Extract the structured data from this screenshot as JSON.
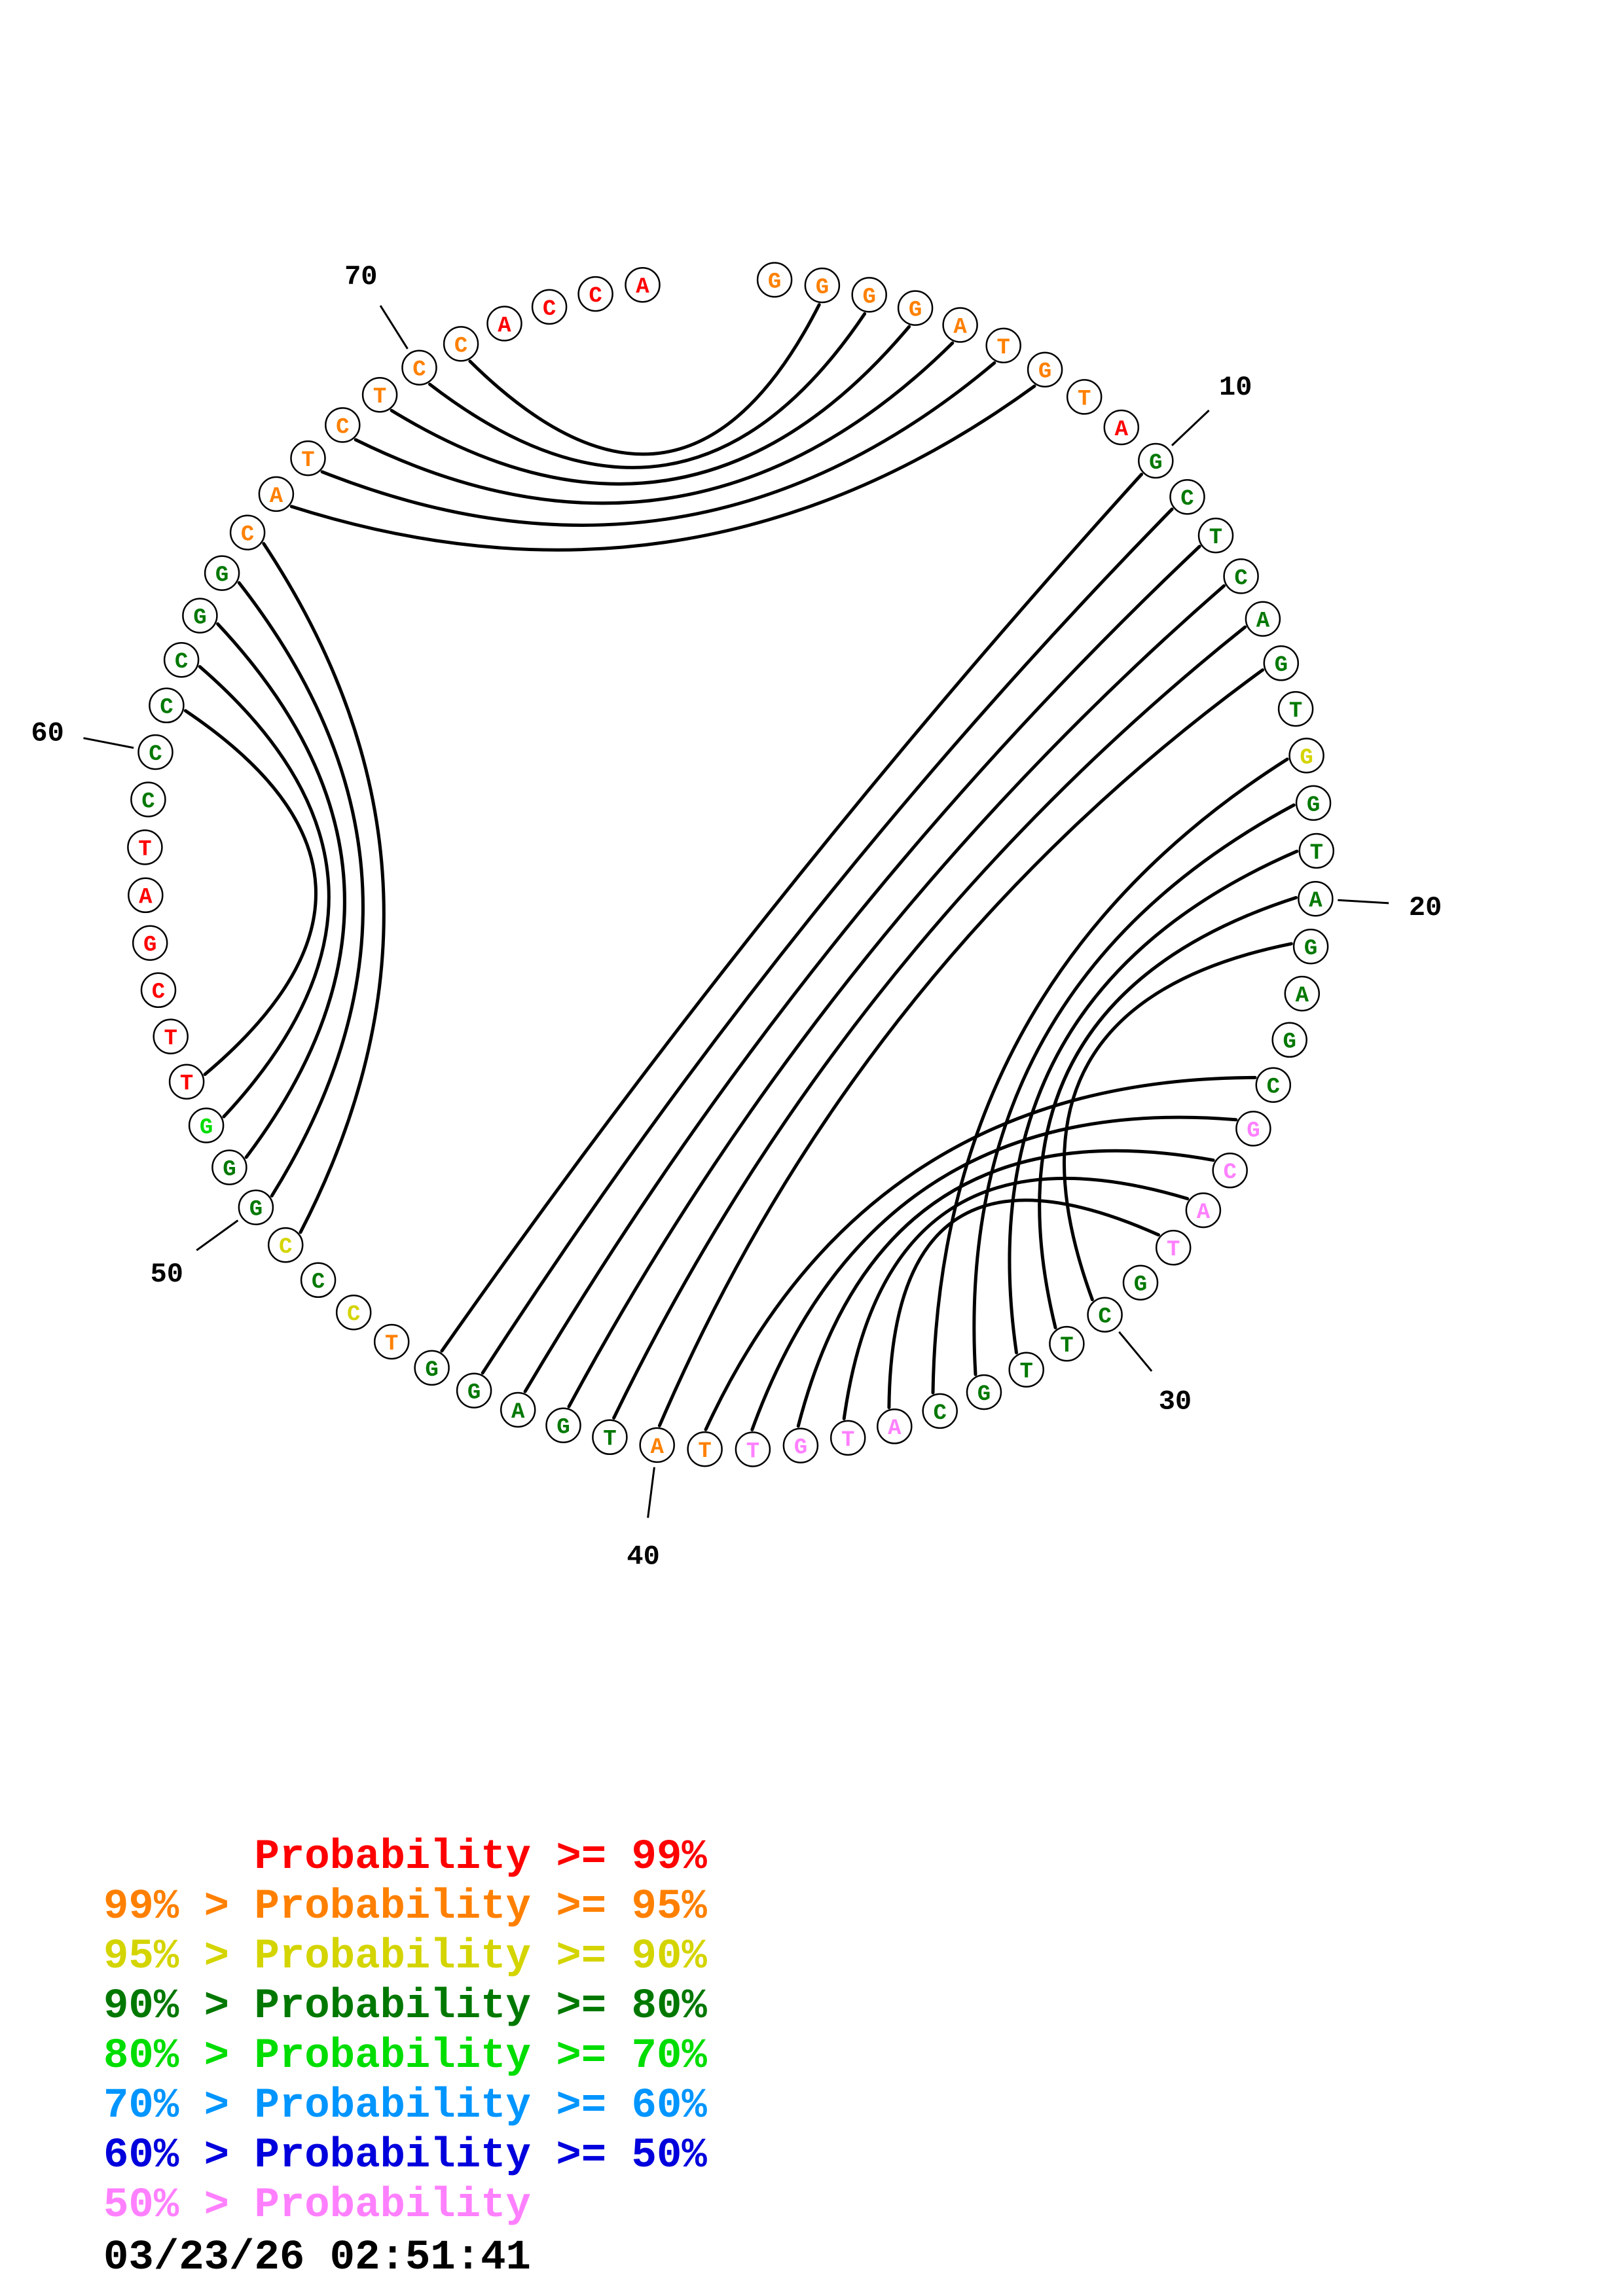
{
  "plot": {
    "description": "Circular nucleic-acid base-pair probability plot",
    "start_angle_deg": 4.3,
    "step_deg": 4.69,
    "decade_labels": [
      10,
      20,
      30,
      40,
      50,
      60,
      70
    ],
    "sequence": [
      {
        "b": "G",
        "c": "orange"
      },
      {
        "b": "G",
        "c": "orange"
      },
      {
        "b": "G",
        "c": "orange"
      },
      {
        "b": "G",
        "c": "orange"
      },
      {
        "b": "A",
        "c": "orange"
      },
      {
        "b": "T",
        "c": "orange"
      },
      {
        "b": "G",
        "c": "orange"
      },
      {
        "b": "T",
        "c": "orange"
      },
      {
        "b": "A",
        "c": "red"
      },
      {
        "b": "G",
        "c": "green"
      },
      {
        "b": "C",
        "c": "green"
      },
      {
        "b": "T",
        "c": "green"
      },
      {
        "b": "C",
        "c": "green"
      },
      {
        "b": "A",
        "c": "green"
      },
      {
        "b": "G",
        "c": "green"
      },
      {
        "b": "T",
        "c": "green"
      },
      {
        "b": "G",
        "c": "yellow"
      },
      {
        "b": "G",
        "c": "green"
      },
      {
        "b": "T",
        "c": "green"
      },
      {
        "b": "A",
        "c": "green"
      },
      {
        "b": "G",
        "c": "green"
      },
      {
        "b": "A",
        "c": "green"
      },
      {
        "b": "G",
        "c": "green"
      },
      {
        "b": "C",
        "c": "green"
      },
      {
        "b": "G",
        "c": "pink"
      },
      {
        "b": "C",
        "c": "pink"
      },
      {
        "b": "A",
        "c": "pink"
      },
      {
        "b": "T",
        "c": "pink"
      },
      {
        "b": "G",
        "c": "green"
      },
      {
        "b": "C",
        "c": "green"
      },
      {
        "b": "T",
        "c": "green"
      },
      {
        "b": "T",
        "c": "green"
      },
      {
        "b": "G",
        "c": "green"
      },
      {
        "b": "C",
        "c": "green"
      },
      {
        "b": "A",
        "c": "pink"
      },
      {
        "b": "T",
        "c": "pink"
      },
      {
        "b": "G",
        "c": "pink"
      },
      {
        "b": "T",
        "c": "pink"
      },
      {
        "b": "T",
        "c": "orange"
      },
      {
        "b": "A",
        "c": "orange"
      },
      {
        "b": "T",
        "c": "green"
      },
      {
        "b": "G",
        "c": "green"
      },
      {
        "b": "A",
        "c": "green"
      },
      {
        "b": "G",
        "c": "green"
      },
      {
        "b": "G",
        "c": "green"
      },
      {
        "b": "T",
        "c": "orange"
      },
      {
        "b": "C",
        "c": "yellow"
      },
      {
        "b": "C",
        "c": "green"
      },
      {
        "b": "C",
        "c": "yellow"
      },
      {
        "b": "G",
        "c": "green"
      },
      {
        "b": "G",
        "c": "green"
      },
      {
        "b": "G",
        "c": "brightgreen"
      },
      {
        "b": "T",
        "c": "red"
      },
      {
        "b": "T",
        "c": "red"
      },
      {
        "b": "C",
        "c": "red"
      },
      {
        "b": "G",
        "c": "red"
      },
      {
        "b": "A",
        "c": "red"
      },
      {
        "b": "T",
        "c": "red"
      },
      {
        "b": "C",
        "c": "green"
      },
      {
        "b": "C",
        "c": "green"
      },
      {
        "b": "C",
        "c": "green"
      },
      {
        "b": "C",
        "c": "green"
      },
      {
        "b": "G",
        "c": "green"
      },
      {
        "b": "G",
        "c": "green"
      },
      {
        "b": "C",
        "c": "orange"
      },
      {
        "b": "A",
        "c": "orange"
      },
      {
        "b": "T",
        "c": "orange"
      },
      {
        "b": "C",
        "c": "orange"
      },
      {
        "b": "T",
        "c": "orange"
      },
      {
        "b": "C",
        "c": "orange"
      },
      {
        "b": "C",
        "c": "orange"
      },
      {
        "b": "A",
        "c": "red"
      },
      {
        "b": "C",
        "c": "red"
      },
      {
        "b": "C",
        "c": "red"
      },
      {
        "b": "A",
        "c": "red"
      }
    ],
    "pairs": [
      [
        2,
        71
      ],
      [
        3,
        70
      ],
      [
        4,
        69
      ],
      [
        5,
        68
      ],
      [
        6,
        67
      ],
      [
        7,
        66
      ],
      [
        49,
        65
      ],
      [
        50,
        64
      ],
      [
        51,
        63
      ],
      [
        52,
        62
      ],
      [
        53,
        61
      ],
      [
        10,
        45
      ],
      [
        11,
        44
      ],
      [
        12,
        43
      ],
      [
        13,
        42
      ],
      [
        14,
        41
      ],
      [
        15,
        40
      ],
      [
        17,
        34
      ],
      [
        18,
        33
      ],
      [
        19,
        32
      ],
      [
        20,
        31
      ],
      [
        21,
        30
      ],
      [
        24,
        39
      ],
      [
        25,
        38
      ],
      [
        26,
        37
      ],
      [
        27,
        36
      ],
      [
        28,
        35
      ]
    ],
    "arc_color": "#000000"
  },
  "colors": {
    "red": "#ff0000",
    "orange": "#ff8000",
    "yellow": "#d4d400",
    "green": "#007800",
    "brightgreen": "#00dd00",
    "skyblue": "#0095ff",
    "blue": "#0000dd",
    "pink": "#ff80ff"
  },
  "legend": {
    "items": [
      {
        "text": "      Probability >= 99%",
        "color": "red"
      },
      {
        "text": "99% > Probability >= 95%",
        "color": "orange"
      },
      {
        "text": "95% > Probability >= 90%",
        "color": "yellow"
      },
      {
        "text": "90% > Probability >= 80%",
        "color": "green"
      },
      {
        "text": "80% > Probability >= 70%",
        "color": "brightgreen"
      },
      {
        "text": "70% > Probability >= 60%",
        "color": "skyblue"
      },
      {
        "text": "60% > Probability >= 50%",
        "color": "blue"
      },
      {
        "text": "50% > Probability",
        "color": "pink"
      }
    ],
    "timestamp": "03/23/26 02:51:41"
  }
}
